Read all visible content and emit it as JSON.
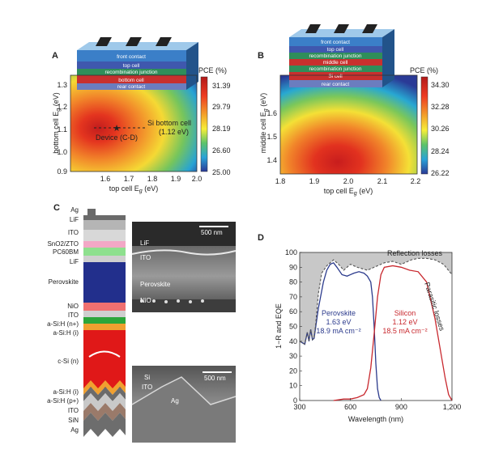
{
  "panels": {
    "A": {
      "label": "A",
      "stack_labels": [
        "front contact",
        "top cell",
        "recombination junction",
        "bottom cell",
        "rear contact"
      ],
      "pce_label": "PCE (%)",
      "colorbar_ticks": [
        "31.39",
        "29.79",
        "28.19",
        "26.60",
        "25.00"
      ],
      "x_ticks": [
        "1.6",
        "1.7",
        "1.8",
        "1.9",
        "2.0"
      ],
      "y_ticks": [
        "0.9",
        "1.0",
        "1.1",
        "1.2",
        "1.3"
      ],
      "xlabel": "top cell E",
      "xlabel_sub": "g",
      "xlabel_unit": " (eV)",
      "ylabel": "bottom cell E",
      "ylabel_sub": "g",
      "ylabel_unit": " (eV)",
      "annot_device": "Device (C-D)",
      "annot_si_1": "Si bottom cell",
      "annot_si_2": "(1.12 eV)"
    },
    "B": {
      "label": "B",
      "stack_labels": [
        "front contact",
        "top cell",
        "recombination junction",
        "middle cell",
        "recombination junction",
        "Si cell",
        "rear contact"
      ],
      "pce_label": "PCE (%)",
      "colorbar_ticks": [
        "34.30",
        "32.28",
        "30.26",
        "28.24",
        "26.22"
      ],
      "x_ticks": [
        "1.8",
        "1.9",
        "2.0",
        "2.1",
        "2.2"
      ],
      "y_ticks": [
        "1.4",
        "1.5",
        "1.6"
      ],
      "xlabel": "top cell E",
      "xlabel_sub": "g",
      "xlabel_unit": " (eV)",
      "ylabel": "middle cell E",
      "ylabel_sub": "g",
      "ylabel_unit": " (eV)"
    },
    "C": {
      "label": "C",
      "layers": [
        {
          "name": "Ag",
          "color": "#555555"
        },
        {
          "name": "LiF",
          "color": "#555555"
        },
        {
          "name": "ITO",
          "color": "#555555"
        },
        {
          "name": "SnO2/ZTO",
          "color": "#e48fb6"
        },
        {
          "name": "PC60BM",
          "color": "#5fc85f"
        },
        {
          "name": "LiF",
          "color": "#555555"
        },
        {
          "name": "Perovskite",
          "color": "#2a2e8a"
        },
        {
          "name": "NiO",
          "color": "#e85a5a"
        },
        {
          "name": "ITO",
          "color": "#555555"
        },
        {
          "name": "a-Si:H (n+)",
          "color": "#2e9a3a"
        },
        {
          "name": "a-Si:H (i)",
          "color": "#e08a20"
        },
        {
          "name": "c-Si (n)",
          "color": "#d21f1f"
        },
        {
          "name": "a-Si:H (i)",
          "color": "#e08a20"
        },
        {
          "name": "a-Si:H (p+)",
          "color": "#555555"
        },
        {
          "name": "ITO",
          "color": "#555555"
        },
        {
          "name": "SiN",
          "color": "#555555"
        },
        {
          "name": "Ag",
          "color": "#555555"
        }
      ],
      "sem1": {
        "scale": "500 nm",
        "labels": [
          "LiF",
          "ITO",
          "Perovskite",
          "NiO"
        ]
      },
      "sem2": {
        "scale": "500 nm",
        "labels": [
          "Si",
          "ITO",
          "Ag"
        ]
      }
    },
    "D": {
      "label": "D",
      "annot_reflection": "Reflection losses",
      "annot_parasitic": "Parasitic losses",
      "perov_lines": [
        "Perovskite",
        "1.63 eV",
        "18.9 mA cm⁻²"
      ],
      "si_lines": [
        "Silicon",
        "1.12 eV",
        "18.5 mA cm⁻²"
      ]
    }
  },
  "chart_data": {
    "type": "line",
    "title": "",
    "xlabel": "Wavelength (nm)",
    "ylabel": "1−R and EQE",
    "xlim": [
      300,
      1200
    ],
    "ylim": [
      0,
      100
    ],
    "x_ticks": [
      "300",
      "600",
      "900",
      "1,200"
    ],
    "y_ticks": [
      "0",
      "10",
      "20",
      "30",
      "40",
      "50",
      "60",
      "70",
      "80",
      "90",
      "100"
    ],
    "series": [
      {
        "name": "Perovskite",
        "color": "#2b3a8c",
        "x": [
          300,
          330,
          345,
          355,
          365,
          375,
          385,
          395,
          410,
          420,
          440,
          460,
          480,
          500,
          520,
          550,
          580,
          600,
          620,
          650,
          680,
          700,
          720,
          730,
          740,
          750,
          760,
          770,
          780
        ],
        "y": [
          40,
          38,
          46,
          40,
          48,
          41,
          42,
          50,
          62,
          68,
          80,
          88,
          92,
          93,
          90,
          85,
          84,
          85,
          86,
          87,
          86,
          84,
          80,
          70,
          50,
          25,
          8,
          2,
          0
        ]
      },
      {
        "name": "Silicon",
        "color": "#c8282e",
        "x": [
          500,
          560,
          600,
          640,
          680,
          700,
          720,
          740,
          760,
          780,
          800,
          850,
          900,
          950,
          1000,
          1050,
          1100,
          1130,
          1160,
          1180,
          1200
        ],
        "y": [
          0,
          1,
          1,
          2,
          4,
          8,
          22,
          45,
          70,
          85,
          90,
          91,
          90,
          88,
          87,
          80,
          55,
          35,
          15,
          4,
          0
        ]
      },
      {
        "name": "1−R",
        "color": "#555555",
        "x": [
          300,
          330,
          345,
          355,
          365,
          375,
          385,
          395,
          410,
          430,
          460,
          500,
          530,
          560,
          600,
          640,
          700,
          760,
          800,
          850,
          900,
          960,
          1000,
          1050,
          1100,
          1150,
          1200
        ],
        "y": [
          40,
          38,
          46,
          40,
          48,
          41,
          42,
          52,
          72,
          86,
          91,
          95,
          92,
          88,
          92,
          90,
          88,
          91,
          93,
          94,
          92,
          95,
          96,
          96,
          95,
          92,
          85
        ]
      }
    ]
  }
}
